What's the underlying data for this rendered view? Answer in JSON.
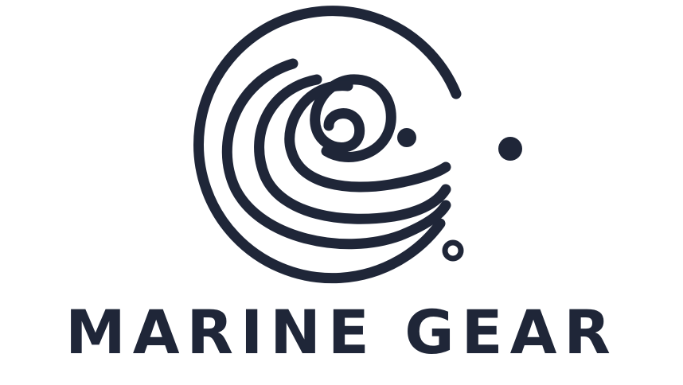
{
  "brand": {
    "name": "MARINE GEAR",
    "color": "#1f2638",
    "logo_icon": "wave-circle-icon"
  }
}
